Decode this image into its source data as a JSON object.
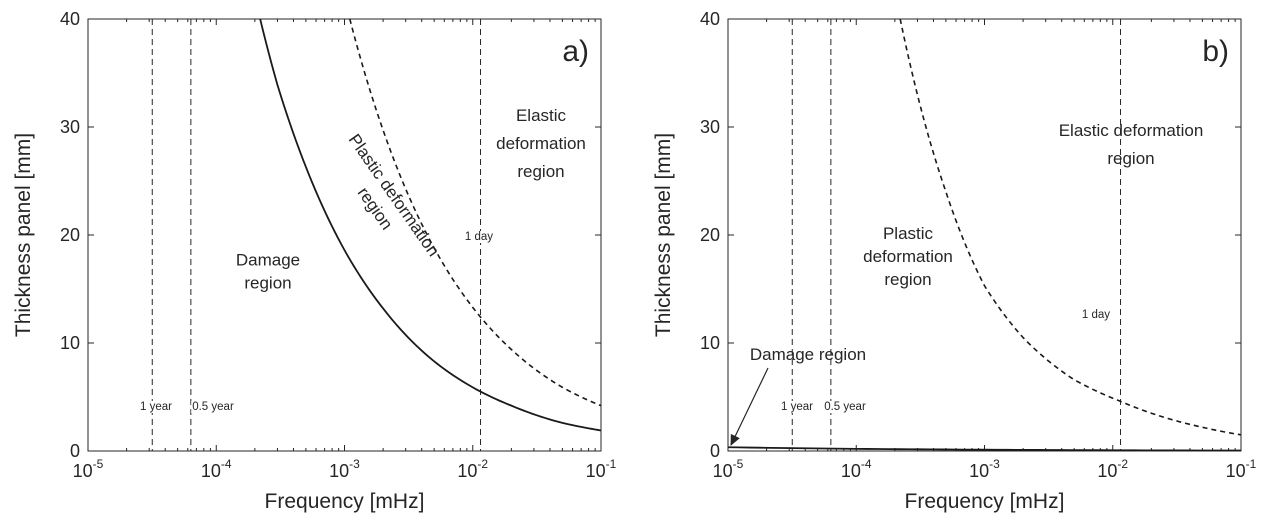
{
  "chart_data": [
    {
      "type": "line",
      "panel_label": "a)",
      "xlabel": "Frequency [mHz]",
      "ylabel": "Thickness panel [mm]",
      "xscale": "log",
      "xlim": [
        1e-05,
        0.1
      ],
      "ylim": [
        0,
        40
      ],
      "grid": false,
      "xticks": [
        {
          "base": "10",
          "exp": "-5",
          "value": 1e-05
        },
        {
          "base": "10",
          "exp": "-4",
          "value": 0.0001
        },
        {
          "base": "10",
          "exp": "-3",
          "value": 0.001
        },
        {
          "base": "10",
          "exp": "-2",
          "value": 0.01
        },
        {
          "base": "10",
          "exp": "-1",
          "value": 0.1
        }
      ],
      "yticks": [
        "0",
        "10",
        "20",
        "30",
        "40"
      ],
      "series": [
        {
          "style": "solid",
          "x": [
            0.00022,
            0.0003,
            0.0005,
            0.001,
            0.002,
            0.005,
            0.0115,
            0.02,
            0.05,
            0.1
          ],
          "y": [
            40,
            33.9,
            26.3,
            18.6,
            13.2,
            8.3,
            5.5,
            4.2,
            2.6,
            1.9
          ]
        },
        {
          "style": "dashed",
          "x": [
            0.0011,
            0.002,
            0.005,
            0.0115,
            0.02,
            0.05,
            0.1
          ],
          "y": [
            40,
            29.7,
            18.8,
            12.4,
            9.4,
            5.9,
            4.2
          ]
        }
      ],
      "reference_lines": [
        {
          "x": 3.17e-05,
          "label": "1 year"
        },
        {
          "x": 6.34e-05,
          "label": "0.5 year"
        },
        {
          "x": 0.0115,
          "label": "1 day"
        }
      ],
      "annotations": [
        {
          "lines": [
            "Damage",
            "region"
          ]
        },
        {
          "lines": [
            "Plastic deformation",
            "region"
          ]
        },
        {
          "lines": [
            "Elastic",
            "deformation",
            "region"
          ]
        }
      ]
    },
    {
      "type": "line",
      "panel_label": "b)",
      "xlabel": "Frequency [mHz]",
      "ylabel": "Thickness panel [mm]",
      "xscale": "log",
      "xlim": [
        1e-05,
        0.1
      ],
      "ylim": [
        0,
        40
      ],
      "grid": false,
      "xticks": [
        {
          "base": "10",
          "exp": "-5",
          "value": 1e-05
        },
        {
          "base": "10",
          "exp": "-4",
          "value": 0.0001
        },
        {
          "base": "10",
          "exp": "-3",
          "value": 0.001
        },
        {
          "base": "10",
          "exp": "-2",
          "value": 0.01
        },
        {
          "base": "10",
          "exp": "-1",
          "value": 0.1
        }
      ],
      "yticks": [
        "0",
        "10",
        "20",
        "30",
        "40"
      ],
      "series": [
        {
          "style": "solid",
          "x": [
            1e-05,
            0.0001,
            0.001,
            0.01,
            0.1
          ],
          "y": [
            0.35,
            0.2,
            0.12,
            0.07,
            0.04
          ]
        },
        {
          "style": "dashed",
          "x": [
            0.00022,
            0.0005,
            0.001,
            0.002,
            0.005,
            0.0115,
            0.02,
            0.05,
            0.1
          ],
          "y": [
            40,
            24.0,
            15.3,
            10.5,
            6.6,
            4.6,
            3.5,
            2.2,
            1.5
          ]
        }
      ],
      "reference_lines": [
        {
          "x": 3.17e-05,
          "label": "1 year"
        },
        {
          "x": 6.34e-05,
          "label": "0.5 year"
        },
        {
          "x": 0.0115,
          "label": "1 day"
        }
      ],
      "annotations": [
        {
          "lines": [
            "Damage region"
          ]
        },
        {
          "lines": [
            "Plastic",
            "deformation",
            "region"
          ]
        },
        {
          "lines": [
            "Elastic deformation",
            "region"
          ]
        }
      ]
    }
  ]
}
